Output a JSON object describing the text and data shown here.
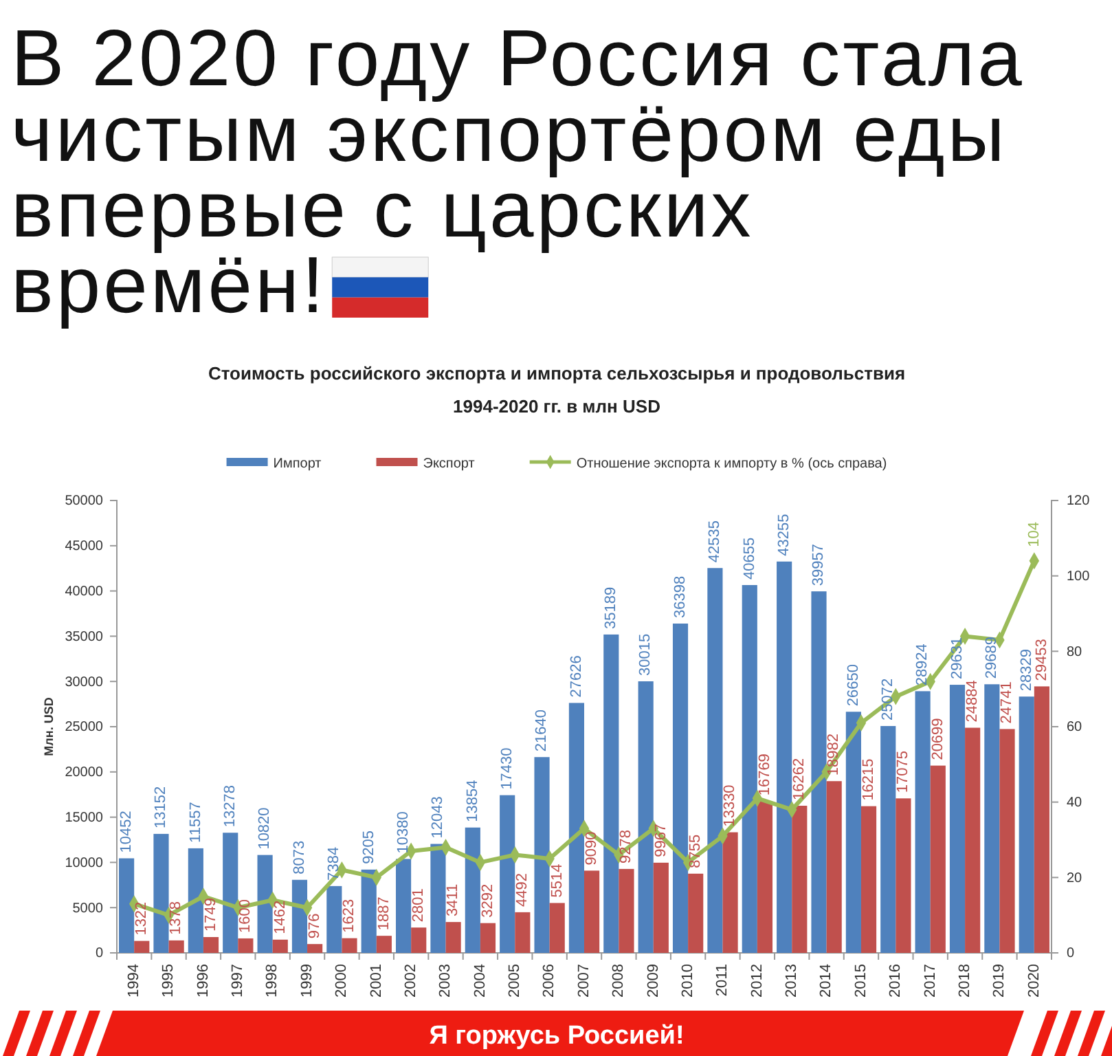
{
  "chart_data": {
    "type": "bar",
    "title": "В 2020 году Россия стала чистым экспортёром еды впервые с царских времён!",
    "subtitle": "Стоимость российского экспорта и импорта сельхозсырья и продовольствия 1994-2020 гг. в млн USD",
    "ylabel": "Млн. USD",
    "annotations": [
      "Я горжусь Россией!"
    ],
    "categories": [
      "1994",
      "1995",
      "1996",
      "1997",
      "1998",
      "1999",
      "2000",
      "2001",
      "2002",
      "2003",
      "2004",
      "2005",
      "2006",
      "2007",
      "2008",
      "2009",
      "2010",
      "2011",
      "2012",
      "2013",
      "2014",
      "2015",
      "2016",
      "2017",
      "2018",
      "2019",
      "2020"
    ],
    "series": [
      {
        "name": "Импорт",
        "color": "#4f81bd",
        "values": [
          10452,
          13152,
          11557,
          13278,
          10820,
          8073,
          7384,
          9205,
          10380,
          12043,
          13854,
          17430,
          21640,
          27626,
          35189,
          30015,
          36398,
          42535,
          40655,
          43255,
          39957,
          26650,
          25072,
          28924,
          29631,
          29689,
          28329
        ],
        "value_labels": [
          "10452",
          "13152",
          "11557",
          "13278",
          "10820",
          "8073",
          "7384",
          "9205",
          "10380",
          "12043",
          "13854",
          "17430",
          "21640",
          "27626",
          "35189",
          "30015",
          "36398",
          "42535",
          "40655",
          "43255",
          "39957",
          "26650",
          "25072",
          "28924",
          "29631",
          "29689",
          "28329"
        ]
      },
      {
        "name": "Экспорт",
        "color": "#c0504d",
        "values": [
          1322,
          1378,
          1749,
          1600,
          1462,
          976,
          1623,
          1887,
          2801,
          3411,
          3292,
          4492,
          5514,
          9090,
          9278,
          9967,
          8755,
          13330,
          16769,
          16262,
          18982,
          16215,
          17075,
          20699,
          24884,
          24741,
          29453
        ],
        "value_labels": [
          "1322",
          "1378",
          "1749",
          "1600",
          "1462",
          "976",
          "1623",
          "1887",
          "2801",
          "3411",
          "3292",
          "4492",
          "5514",
          "9090",
          "9278",
          "9967",
          "8755",
          "13330",
          "16769",
          "16262",
          "18982",
          "16215",
          "17075",
          "20699",
          "24884",
          "24741",
          "29453"
        ]
      },
      {
        "name": "Отношение экспорта к импорту в % (ось справа)",
        "type": "line",
        "axis": "y2",
        "color": "#9bbb59",
        "values": [
          13,
          10,
          15,
          12,
          14,
          12,
          22,
          20,
          27,
          28,
          24,
          26,
          25,
          33,
          26,
          33,
          24,
          31,
          41,
          38,
          48,
          61,
          68,
          72,
          84,
          83,
          104
        ],
        "value_labels": [
          null,
          null,
          null,
          null,
          null,
          null,
          null,
          null,
          null,
          null,
          null,
          null,
          null,
          null,
          null,
          null,
          null,
          null,
          null,
          null,
          null,
          null,
          null,
          null,
          null,
          null,
          "104"
        ]
      }
    ],
    "ylim": [
      0,
      50000
    ],
    "yticks": [
      0,
      5000,
      10000,
      15000,
      20000,
      25000,
      30000,
      35000,
      40000,
      45000,
      50000
    ],
    "y2lim": [
      0,
      120
    ],
    "y2ticks": [
      0,
      20,
      40,
      60,
      80,
      100,
      120
    ],
    "marker": "diamond",
    "legend": "top"
  }
}
